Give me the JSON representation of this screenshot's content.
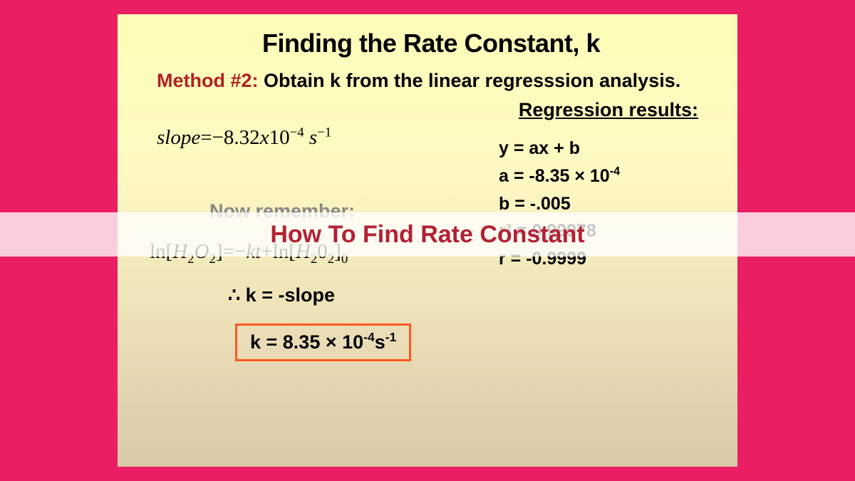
{
  "slide": {
    "title": "Finding the Rate Constant, k",
    "method_label": "Method #2:",
    "method_text": " Obtain k from the linear regresssion analysis.",
    "now_remember": "Now remember:",
    "therefore": "∴  k  =  -slope",
    "result_box": "k = 8.35 × 10⁻⁴s⁻¹",
    "regression_title": "Regression results:",
    "regression": {
      "eq": "y = ax + b",
      "a": "a = -8.35 × 10⁻⁴",
      "b": "b = -.005",
      "r2": "r² = 0.99978",
      "r": "r = -0.9999"
    }
  },
  "overlay": {
    "text": "How To Find Rate Constant"
  },
  "colors": {
    "page_bg": "#e91e63",
    "slide_gradient_top": "#fffdb8",
    "slide_gradient_bottom": "#d9c9a8",
    "method_label": "#b22222",
    "box_border": "#ff5722",
    "overlay_text": "#b22234",
    "overlay_band": "rgba(255,255,255,0.78)",
    "faded_text": "#888888"
  },
  "fonts": {
    "main": "Comic Sans MS",
    "math": "Georgia",
    "overlay": "Arial",
    "title_size_pt": 27,
    "body_size_pt": 20
  }
}
